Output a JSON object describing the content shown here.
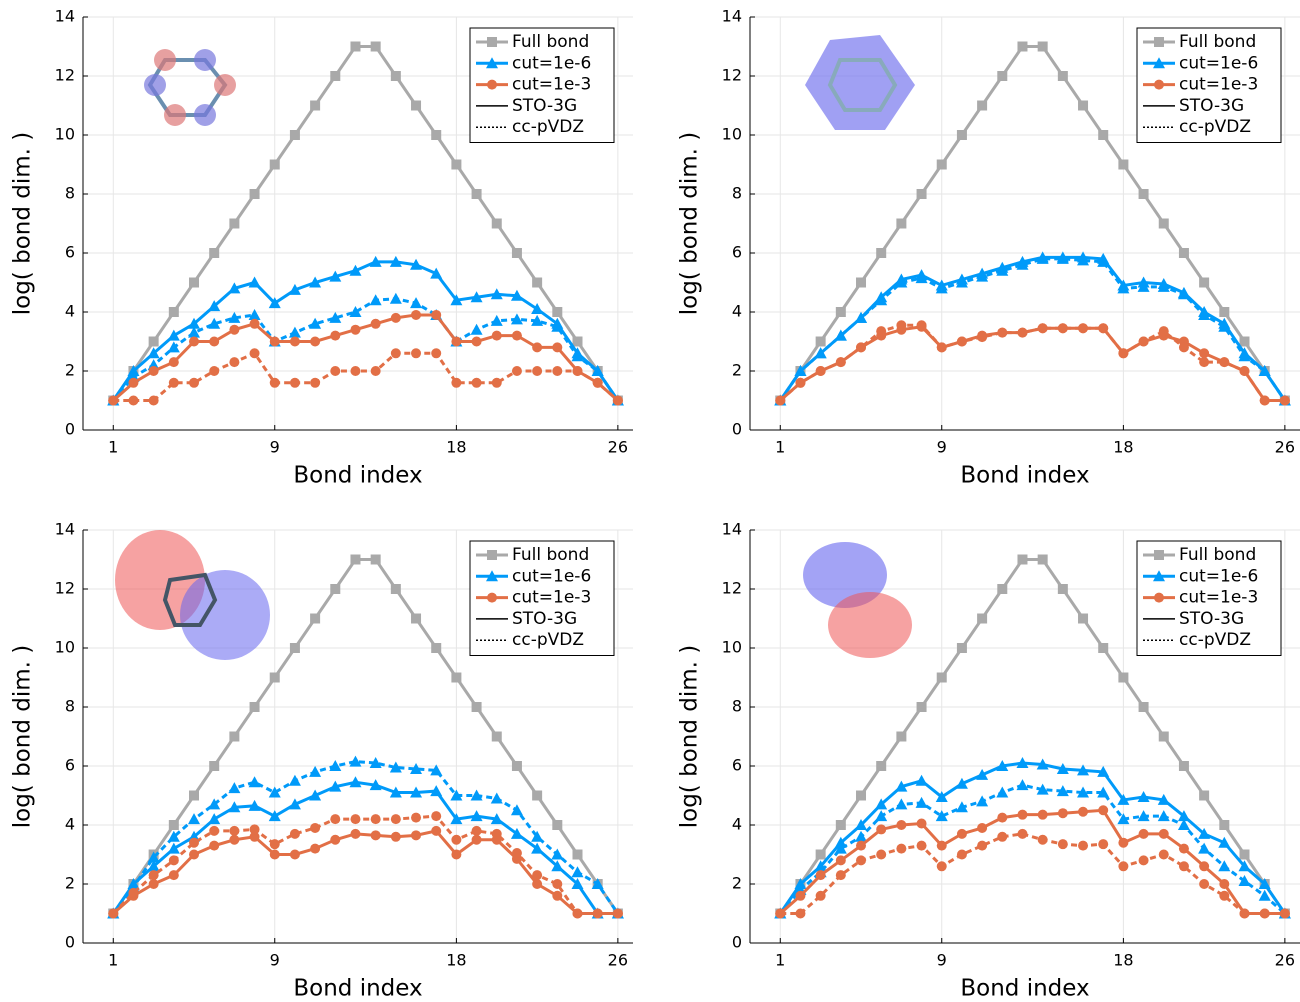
{
  "chart_data": [
    {
      "type": "line",
      "xlabel": "Bond index",
      "ylabel": "log( bond dim. )",
      "xlim": [
        -0.5,
        26.75
      ],
      "ylim": [
        0,
        14
      ],
      "xticks": [
        1,
        9,
        18,
        26
      ],
      "yticks": [
        0,
        2,
        4,
        6,
        8,
        10,
        12,
        14
      ],
      "grid": true,
      "legend": "top right",
      "x": [
        1,
        2,
        3,
        4,
        5,
        6,
        7,
        8,
        9,
        10,
        11,
        12,
        13,
        14,
        15,
        16,
        17,
        18,
        19,
        20,
        21,
        22,
        23,
        24,
        25,
        26
      ],
      "linestyles": [
        {
          "name": "STO-3G",
          "dash": "solid"
        },
        {
          "name": "cc-pVDZ",
          "dash": "dotted"
        }
      ],
      "series": [
        {
          "name": "Full bond",
          "color": "#a9a9a9",
          "marker": "square",
          "values": [
            1,
            2,
            3,
            4,
            5,
            6,
            7,
            8,
            9,
            10,
            11,
            12,
            13,
            13,
            12,
            11,
            10,
            9,
            8,
            7,
            6,
            5,
            4,
            3,
            2,
            1
          ]
        },
        {
          "name": "cut=1e-6",
          "color": "#009af9",
          "marker": "triangle",
          "values": [
            [
              1,
              2,
              2.6,
              3.2,
              3.6,
              4.2,
              4.8,
              5.0,
              4.3,
              4.75,
              5.0,
              5.2,
              5.4,
              5.7,
              5.7,
              5.6,
              5.3,
              4.4,
              4.5,
              4.6,
              4.55,
              4.1,
              3.6,
              2.6,
              2.0,
              1.0
            ],
            [
              1,
              1.8,
              2.2,
              2.8,
              3.3,
              3.6,
              3.8,
              3.9,
              3.0,
              3.3,
              3.6,
              3.8,
              4.0,
              4.4,
              4.45,
              4.3,
              3.9,
              3.0,
              3.4,
              3.7,
              3.75,
              3.7,
              3.5,
              2.5,
              2.0,
              1.0
            ]
          ]
        },
        {
          "name": "cut=1e-3",
          "color": "#e26f46",
          "marker": "circle",
          "values": [
            [
              1,
              1.6,
              2.0,
              2.3,
              3.0,
              3.0,
              3.4,
              3.6,
              3.0,
              3.0,
              3.0,
              3.2,
              3.4,
              3.6,
              3.8,
              3.9,
              3.9,
              3.0,
              3.0,
              3.2,
              3.2,
              2.8,
              2.8,
              2.0,
              1.6,
              1.0
            ],
            [
              1,
              1.0,
              1.0,
              1.6,
              1.6,
              2.0,
              2.3,
              2.6,
              1.6,
              1.6,
              1.6,
              2.0,
              2.0,
              2.0,
              2.6,
              2.6,
              2.6,
              1.6,
              1.6,
              1.6,
              2.0,
              2.0,
              2.0,
              2.0,
              1.6,
              1.0
            ]
          ]
        }
      ]
    },
    {
      "type": "line",
      "xlabel": "Bond index",
      "ylabel": "log( bond dim. )",
      "xlim": [
        -0.5,
        26.75
      ],
      "ylim": [
        0,
        14
      ],
      "xticks": [
        1,
        9,
        18,
        26
      ],
      "yticks": [
        0,
        2,
        4,
        6,
        8,
        10,
        12,
        14
      ],
      "grid": true,
      "legend": "top right",
      "x": [
        1,
        2,
        3,
        4,
        5,
        6,
        7,
        8,
        9,
        10,
        11,
        12,
        13,
        14,
        15,
        16,
        17,
        18,
        19,
        20,
        21,
        22,
        23,
        24,
        25,
        26
      ],
      "linestyles": [
        {
          "name": "STO-3G",
          "dash": "solid"
        },
        {
          "name": "cc-pVDZ",
          "dash": "dotted"
        }
      ],
      "series": [
        {
          "name": "Full bond",
          "color": "#a9a9a9",
          "marker": "square",
          "values": [
            1,
            2,
            3,
            4,
            5,
            6,
            7,
            8,
            9,
            10,
            11,
            12,
            13,
            13,
            12,
            11,
            10,
            9,
            8,
            7,
            6,
            5,
            4,
            3,
            2,
            1
          ]
        },
        {
          "name": "cut=1e-6",
          "color": "#009af9",
          "marker": "triangle",
          "values": [
            [
              1,
              2,
              2.6,
              3.2,
              3.8,
              4.5,
              5.1,
              5.25,
              4.9,
              5.1,
              5.3,
              5.5,
              5.7,
              5.85,
              5.85,
              5.85,
              5.8,
              4.9,
              5.0,
              4.95,
              4.65,
              4.0,
              3.6,
              2.6,
              2.0,
              1.0
            ],
            [
              1,
              2,
              2.6,
              3.2,
              3.8,
              4.4,
              5.0,
              5.15,
              4.8,
              5.0,
              5.2,
              5.4,
              5.6,
              5.8,
              5.8,
              5.75,
              5.7,
              4.8,
              4.85,
              4.85,
              4.6,
              3.9,
              3.5,
              2.5,
              2.0,
              1.0
            ]
          ]
        },
        {
          "name": "cut=1e-3",
          "color": "#e26f46",
          "marker": "circle",
          "values": [
            [
              1,
              1.6,
              2.0,
              2.3,
              2.8,
              3.2,
              3.4,
              3.5,
              2.8,
              3.0,
              3.2,
              3.3,
              3.3,
              3.45,
              3.45,
              3.45,
              3.45,
              2.6,
              3.0,
              3.2,
              3.0,
              2.6,
              2.3,
              2.0,
              1.0,
              1.0
            ],
            [
              1,
              1.6,
              2.0,
              2.3,
              2.8,
              3.35,
              3.55,
              3.55,
              2.8,
              3.0,
              3.15,
              3.3,
              3.3,
              3.45,
              3.45,
              3.45,
              3.45,
              2.6,
              3.0,
              3.35,
              2.8,
              2.3,
              2.3,
              2.0,
              1.0,
              1.0
            ]
          ]
        }
      ]
    },
    {
      "type": "line",
      "xlabel": "Bond index",
      "ylabel": "log( bond dim. )",
      "xlim": [
        -0.5,
        26.75
      ],
      "ylim": [
        0,
        14
      ],
      "xticks": [
        1,
        9,
        18,
        26
      ],
      "yticks": [
        0,
        2,
        4,
        6,
        8,
        10,
        12,
        14
      ],
      "grid": true,
      "legend": "top right",
      "x": [
        1,
        2,
        3,
        4,
        5,
        6,
        7,
        8,
        9,
        10,
        11,
        12,
        13,
        14,
        15,
        16,
        17,
        18,
        19,
        20,
        21,
        22,
        23,
        24,
        25,
        26
      ],
      "linestyles": [
        {
          "name": "STO-3G",
          "dash": "solid"
        },
        {
          "name": "cc-pVDZ",
          "dash": "dotted"
        }
      ],
      "series": [
        {
          "name": "Full bond",
          "color": "#a9a9a9",
          "marker": "square",
          "values": [
            1,
            2,
            3,
            4,
            5,
            6,
            7,
            8,
            9,
            10,
            11,
            12,
            13,
            13,
            12,
            11,
            10,
            9,
            8,
            7,
            6,
            5,
            4,
            3,
            2,
            1
          ]
        },
        {
          "name": "cut=1e-6",
          "color": "#009af9",
          "marker": "triangle",
          "values": [
            [
              1,
              2,
              2.6,
              3.2,
              3.6,
              4.2,
              4.6,
              4.65,
              4.3,
              4.7,
              5.0,
              5.3,
              5.45,
              5.35,
              5.1,
              5.1,
              5.15,
              4.2,
              4.3,
              4.2,
              3.7,
              3.2,
              2.6,
              2.0,
              1.0,
              1.0
            ],
            [
              1,
              1.9,
              2.9,
              3.6,
              4.2,
              4.7,
              5.25,
              5.45,
              5.1,
              5.5,
              5.8,
              6.0,
              6.15,
              6.1,
              5.95,
              5.9,
              5.85,
              5.0,
              5.0,
              4.9,
              4.5,
              3.6,
              3.0,
              2.4,
              2.0,
              1.0
            ]
          ]
        },
        {
          "name": "cut=1e-3",
          "color": "#e26f46",
          "marker": "circle",
          "values": [
            [
              1,
              1.6,
              2.0,
              2.3,
              3.0,
              3.3,
              3.5,
              3.6,
              3.0,
              3.0,
              3.2,
              3.5,
              3.7,
              3.65,
              3.6,
              3.65,
              3.8,
              3.0,
              3.5,
              3.5,
              2.85,
              2.0,
              1.6,
              1.0,
              1.0,
              1.0
            ],
            [
              1,
              1.7,
              2.3,
              2.8,
              3.4,
              3.8,
              3.8,
              3.85,
              3.35,
              3.7,
              3.9,
              4.2,
              4.2,
              4.2,
              4.2,
              4.25,
              4.3,
              3.5,
              3.8,
              3.7,
              3.05,
              2.3,
              2.0,
              1.0,
              1.0,
              1.0
            ]
          ]
        }
      ]
    },
    {
      "type": "line",
      "xlabel": "Bond index",
      "ylabel": "log( bond dim. )",
      "xlim": [
        -0.5,
        26.75
      ],
      "ylim": [
        0,
        14
      ],
      "xticks": [
        1,
        9,
        18,
        26
      ],
      "yticks": [
        0,
        2,
        4,
        6,
        8,
        10,
        12,
        14
      ],
      "grid": true,
      "legend": "top right",
      "x": [
        1,
        2,
        3,
        4,
        5,
        6,
        7,
        8,
        9,
        10,
        11,
        12,
        13,
        14,
        15,
        16,
        17,
        18,
        19,
        20,
        21,
        22,
        23,
        24,
        25,
        26
      ],
      "linestyles": [
        {
          "name": "STO-3G",
          "dash": "solid"
        },
        {
          "name": "cc-pVDZ",
          "dash": "dotted"
        }
      ],
      "series": [
        {
          "name": "Full bond",
          "color": "#a9a9a9",
          "marker": "square",
          "values": [
            1,
            2,
            3,
            4,
            5,
            6,
            7,
            8,
            9,
            10,
            11,
            12,
            13,
            13,
            12,
            11,
            10,
            9,
            8,
            7,
            6,
            5,
            4,
            3,
            2,
            1
          ]
        },
        {
          "name": "cut=1e-6",
          "color": "#009af9",
          "marker": "triangle",
          "values": [
            [
              1,
              2,
              2.6,
              3.4,
              4.0,
              4.7,
              5.3,
              5.5,
              4.95,
              5.4,
              5.7,
              6.0,
              6.1,
              6.05,
              5.9,
              5.85,
              5.8,
              4.85,
              4.95,
              4.85,
              4.3,
              3.7,
              3.4,
              2.6,
              2.0,
              1.0
            ],
            [
              1,
              1.8,
              2.4,
              3.2,
              3.6,
              4.3,
              4.7,
              4.75,
              4.3,
              4.6,
              4.8,
              5.1,
              5.35,
              5.2,
              5.15,
              5.1,
              5.1,
              4.2,
              4.3,
              4.3,
              4.0,
              3.2,
              2.6,
              2.1,
              1.6,
              1.0
            ]
          ]
        },
        {
          "name": "cut=1e-3",
          "color": "#e26f46",
          "marker": "circle",
          "values": [
            [
              1,
              1.6,
              2.3,
              2.8,
              3.3,
              3.85,
              4.0,
              4.05,
              3.3,
              3.7,
              3.9,
              4.25,
              4.35,
              4.35,
              4.4,
              4.45,
              4.5,
              3.4,
              3.7,
              3.7,
              3.2,
              2.6,
              2.0,
              1.0,
              1.0,
              1.0
            ],
            [
              1,
              1.0,
              1.6,
              2.3,
              2.8,
              3.0,
              3.2,
              3.3,
              2.6,
              3.0,
              3.3,
              3.6,
              3.7,
              3.5,
              3.35,
              3.3,
              3.35,
              2.6,
              2.8,
              3.0,
              2.6,
              2.0,
              1.6,
              1.0,
              1.0,
              1.0
            ]
          ]
        }
      ]
    }
  ]
}
